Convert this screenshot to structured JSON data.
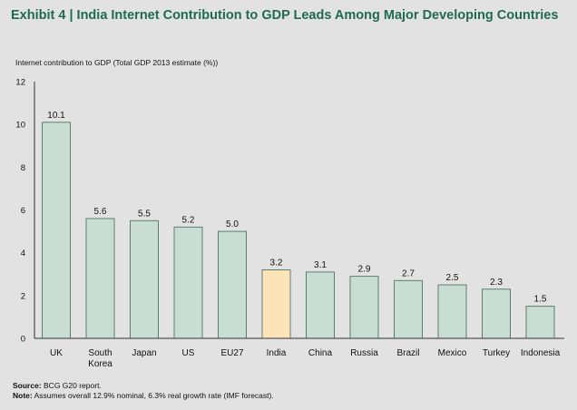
{
  "chart_data": {
    "type": "bar",
    "title": "Exhibit 4 | India Internet Contribution to GDP Leads Among Major Developing Countries",
    "ylabel": "Internet contribution to GDP (Total GDP 2013 estimate (%))",
    "xlabel": "",
    "categories": [
      "UK",
      "South Korea",
      "Japan",
      "US",
      "EU27",
      "India",
      "China",
      "Russia",
      "Brazil",
      "Mexico",
      "Turkey",
      "Indonesia"
    ],
    "category_lines": [
      [
        "UK"
      ],
      [
        "South",
        "Korea"
      ],
      [
        "Japan"
      ],
      [
        "US"
      ],
      [
        "EU27"
      ],
      [
        "India"
      ],
      [
        "China"
      ],
      [
        "Russia"
      ],
      [
        "Brazil"
      ],
      [
        "Mexico"
      ],
      [
        "Turkey"
      ],
      [
        "Indonesia"
      ]
    ],
    "values": [
      10.1,
      5.6,
      5.5,
      5.2,
      5.0,
      3.2,
      3.1,
      2.9,
      2.7,
      2.5,
      2.3,
      1.5
    ],
    "value_labels": [
      "10.1",
      "5.6",
      "5.5",
      "5.2",
      "5.0",
      "3.2",
      "3.1",
      "2.9",
      "2.7",
      "2.5",
      "2.3",
      "1.5"
    ],
    "highlight": "India",
    "ylim": [
      0,
      12
    ],
    "yticks": [
      0,
      2,
      4,
      6,
      8,
      10,
      12
    ],
    "grid": false,
    "colors": {
      "bar": "#c8ddd4",
      "highlight": "#fde4b8",
      "bar_border": "#5d7d72",
      "title": "#1f6b50"
    }
  },
  "footer": {
    "source_label": "Source:",
    "source_text": " BCG G20 report.",
    "note_label": "Note:",
    "note_text": " Assumes overall 12.9% nominal, 6.3% real growth rate (IMF forecast)."
  }
}
